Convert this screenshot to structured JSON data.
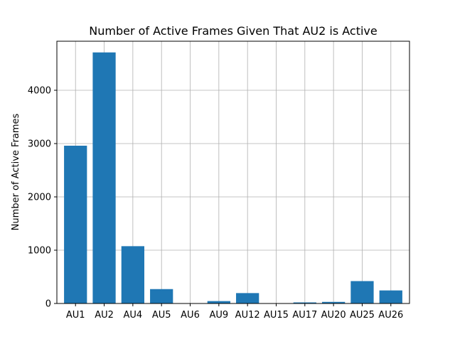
{
  "chart_data": {
    "type": "bar",
    "title": "Number of Active Frames Given That AU2 is Active",
    "xlabel": "",
    "ylabel": "Number of Active Frames",
    "categories": [
      "AU1",
      "AU2",
      "AU4",
      "AU5",
      "AU6",
      "AU9",
      "AU12",
      "AU15",
      "AU17",
      "AU20",
      "AU25",
      "AU26"
    ],
    "values": [
      2960,
      4710,
      1075,
      270,
      0,
      45,
      195,
      0,
      20,
      30,
      420,
      245
    ],
    "ylim": [
      0,
      4920
    ],
    "yticks": [
      0,
      1000,
      2000,
      3000,
      4000
    ],
    "grid": true,
    "bar_color": "#1f77b4"
  }
}
